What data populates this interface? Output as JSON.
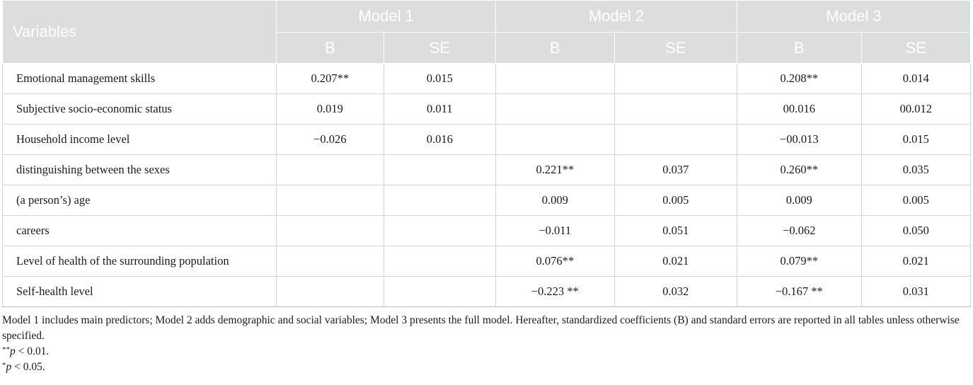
{
  "table": {
    "variables_header": "Variables",
    "models": [
      "Model 1",
      "Model 2",
      "Model 3"
    ],
    "subheaders": [
      "B",
      "SE",
      "B",
      "SE",
      "B",
      "SE"
    ],
    "rows": [
      {
        "label": "Emotional management skills",
        "cells": [
          "0.207**",
          "0.015",
          "",
          "",
          "0.208**",
          "0.014"
        ]
      },
      {
        "label": "Subjective socio-economic status",
        "cells": [
          "0.019",
          "0.011",
          "",
          "",
          "00.016",
          "00.012"
        ]
      },
      {
        "label": "Household income level",
        "cells": [
          "−0.026",
          "0.016",
          "",
          "",
          "−00.013",
          "0.015"
        ]
      },
      {
        "label": "distinguishing between the sexes",
        "cells": [
          "",
          "",
          "0.221**",
          "0.037",
          "0.260**",
          "0.035"
        ]
      },
      {
        "label": "(a person’s) age",
        "cells": [
          "",
          "",
          "0.009",
          "0.005",
          "0.009",
          "0.005"
        ]
      },
      {
        "label": "careers",
        "cells": [
          "",
          "",
          "−0.011",
          "0.051",
          "−0.062",
          "0.050"
        ]
      },
      {
        "label": "Level of health of the surrounding population",
        "cells": [
          "",
          "",
          "0.076**",
          "0.021",
          "0.079**",
          "0.021"
        ]
      },
      {
        "label": "Self-health level",
        "cells": [
          "",
          "",
          "−0.223 **",
          "0.032",
          "−0.167 **",
          "0.031"
        ]
      }
    ]
  },
  "notes": {
    "main": "Model 1 includes main predictors; Model 2 adds demographic and social variables; Model 3 presents the full model. Hereafter, standardized coefficients (B) and standard errors are reported in all tables unless otherwise specified.",
    "note1": {
      "symbol": "**",
      "p": "p",
      "rest": " < 0.01."
    },
    "note2": {
      "symbol": "*",
      "p": "p",
      "rest": " < 0.05."
    }
  }
}
